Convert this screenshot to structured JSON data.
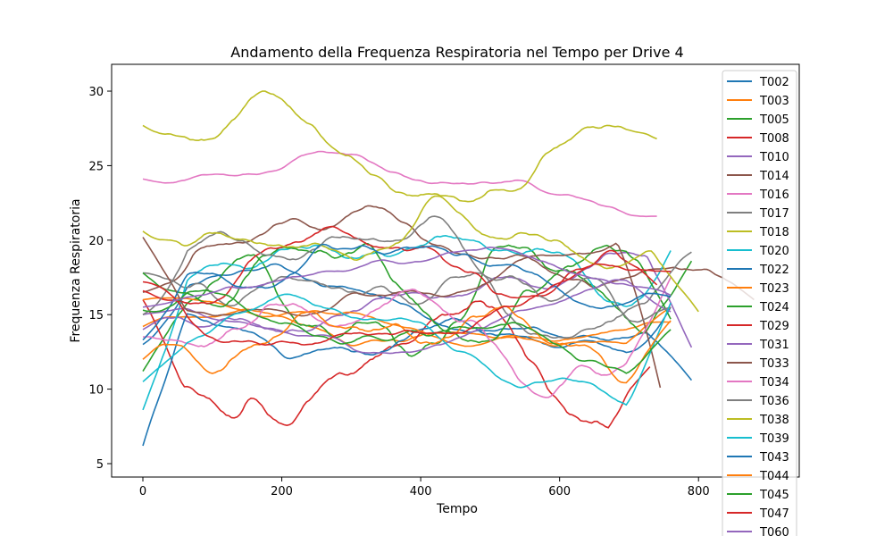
{
  "chart_data": {
    "type": "line",
    "title": "Andamento della Frequenza Respiratoria nel Tempo per Drive 4",
    "xlabel": "Tempo",
    "ylabel": "Frequenza Respiratoria",
    "xlim": [
      -45,
      945
    ],
    "ylim": [
      4.1,
      31.8
    ],
    "xticks": [
      0,
      200,
      400,
      600,
      800
    ],
    "yticks": [
      5,
      10,
      15,
      20,
      25,
      30
    ],
    "grid": false,
    "legend_position": "right",
    "series": [
      {
        "name": "T002",
        "color": "#1f77b4",
        "len": 790,
        "start": 13.0,
        "end": 10.6,
        "base": 15.2,
        "amp": 2.0,
        "seed": 2
      },
      {
        "name": "T003",
        "color": "#ff7f0e",
        "len": 760,
        "start": 14.2,
        "end": 14.5,
        "base": 15.8,
        "amp": 1.8,
        "seed": 3
      },
      {
        "name": "T005",
        "color": "#2ca02c",
        "len": 790,
        "start": 11.2,
        "end": 18.6,
        "base": 15.5,
        "amp": 2.6,
        "seed": 5
      },
      {
        "name": "T008",
        "color": "#d62728",
        "len": 730,
        "start": 16.0,
        "end": 11.5,
        "base": 11.8,
        "amp": 2.8,
        "seed": 8
      },
      {
        "name": "T010",
        "color": "#9467bd",
        "len": 790,
        "start": 14.0,
        "end": 12.8,
        "base": 15.8,
        "amp": 2.2,
        "seed": 10
      },
      {
        "name": "T014",
        "color": "#8c564b",
        "len": 880,
        "start": 16.5,
        "end": 16.0,
        "base": 17.5,
        "amp": 3.0,
        "seed": 14
      },
      {
        "name": "T016",
        "color": "#e377c2",
        "len": 740,
        "start": 24.1,
        "end": 21.6,
        "base": 23.8,
        "amp": 1.5,
        "seed": 16
      },
      {
        "name": "T017",
        "color": "#7f7f7f",
        "len": 790,
        "start": 17.8,
        "end": 19.2,
        "base": 17.6,
        "amp": 2.6,
        "seed": 17
      },
      {
        "name": "T018",
        "color": "#bcbd22",
        "len": 740,
        "start": 27.7,
        "end": 26.8,
        "base": 26.0,
        "amp": 2.5,
        "seed": 18
      },
      {
        "name": "T020",
        "color": "#17becf",
        "len": 760,
        "start": 8.6,
        "end": 19.3,
        "base": 15.5,
        "amp": 3.0,
        "seed": 20
      },
      {
        "name": "T022",
        "color": "#1f77b4",
        "len": 760,
        "start": 6.2,
        "end": 15.5,
        "base": 15.2,
        "amp": 2.5,
        "seed": 22
      },
      {
        "name": "T023",
        "color": "#ff7f0e",
        "len": 760,
        "start": 16.0,
        "end": 15.5,
        "base": 16.4,
        "amp": 2.2,
        "seed": 23
      },
      {
        "name": "T024",
        "color": "#2ca02c",
        "len": 760,
        "start": 17.8,
        "end": 14.7,
        "base": 15.5,
        "amp": 3.0,
        "seed": 24
      },
      {
        "name": "T029",
        "color": "#d62728",
        "len": 740,
        "start": 16.6,
        "end": 17.0,
        "base": 15.8,
        "amp": 3.2,
        "seed": 29
      },
      {
        "name": "T031",
        "color": "#9467bd",
        "len": 760,
        "start": 15.0,
        "end": 15.2,
        "base": 15.6,
        "amp": 2.0,
        "seed": 31
      },
      {
        "name": "T033",
        "color": "#8c564b",
        "len": 745,
        "start": 20.2,
        "end": 10.1,
        "base": 16.4,
        "amp": 3.2,
        "seed": 33
      },
      {
        "name": "T034",
        "color": "#e377c2",
        "len": 760,
        "start": 13.5,
        "end": 17.5,
        "base": 13.6,
        "amp": 2.6,
        "seed": 34
      },
      {
        "name": "T036",
        "color": "#7f7f7f",
        "len": 760,
        "start": 15.0,
        "end": 15.5,
        "base": 16.8,
        "amp": 3.0,
        "seed": 36
      },
      {
        "name": "T038",
        "color": "#bcbd22",
        "len": 800,
        "start": 20.6,
        "end": 15.2,
        "base": 18.8,
        "amp": 2.6,
        "seed": 38
      },
      {
        "name": "T039",
        "color": "#17becf",
        "len": 760,
        "start": 10.5,
        "end": 15.8,
        "base": 12.6,
        "amp": 2.4,
        "seed": 39
      },
      {
        "name": "T043",
        "color": "#1f77b4",
        "len": 760,
        "start": 13.3,
        "end": 16.2,
        "base": 16.2,
        "amp": 2.2,
        "seed": 43
      },
      {
        "name": "T044",
        "color": "#ff7f0e",
        "len": 760,
        "start": 12.0,
        "end": 14.6,
        "base": 14.2,
        "amp": 2.4,
        "seed": 44
      },
      {
        "name": "T045",
        "color": "#2ca02c",
        "len": 760,
        "start": 15.3,
        "end": 14.0,
        "base": 14.6,
        "amp": 2.4,
        "seed": 45
      },
      {
        "name": "T047",
        "color": "#d62728",
        "len": 760,
        "start": 17.2,
        "end": 17.9,
        "base": 16.8,
        "amp": 2.4,
        "seed": 47
      },
      {
        "name": "T060",
        "color": "#9467bd",
        "len": 760,
        "start": 15.5,
        "end": 16.3,
        "base": 16.0,
        "amp": 2.2,
        "seed": 60
      }
    ]
  }
}
